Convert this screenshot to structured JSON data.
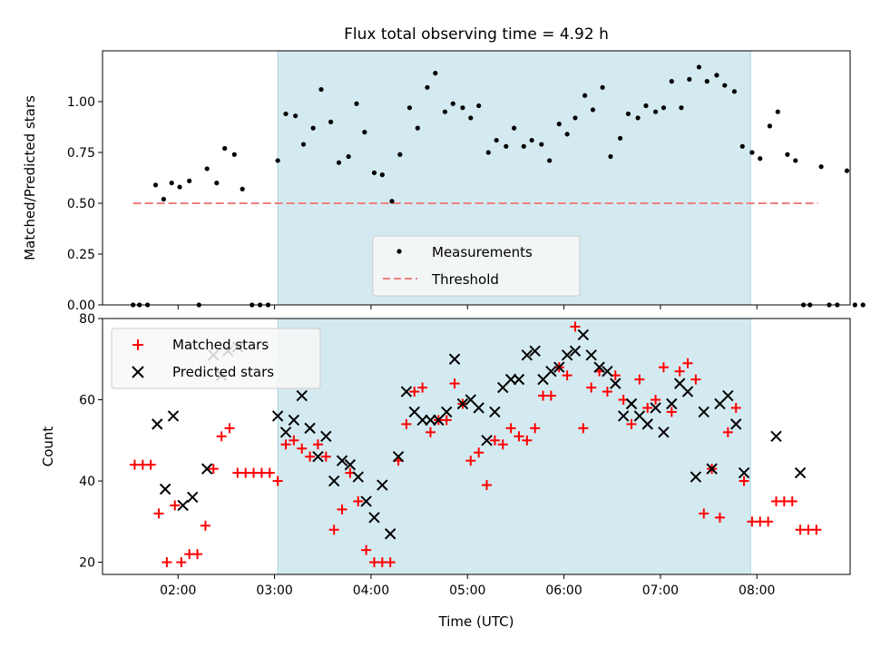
{
  "chart_data": [
    {
      "type": "scatter",
      "title": "Flux total observing time = 4.92 h",
      "xlabel": "",
      "ylabel": "Matched/Predicted stars",
      "xlim": [
        "01:13",
        "08:58"
      ],
      "ylim": [
        0,
        1.25
      ],
      "y_ticks": [
        "0.00",
        "0.25",
        "0.50",
        "0.75",
        "1.00"
      ],
      "shaded_interval": [
        "03:02",
        "07:56"
      ],
      "shade_color": "#d4eaf1",
      "threshold": {
        "value": 0.5,
        "x_start": "01:32",
        "x_end": "08:38",
        "color": "#ef8080"
      },
      "legend": {
        "placement": "lower center",
        "entries": [
          {
            "label": "Measurements",
            "marker": "dot"
          },
          {
            "label": "Threshold",
            "marker": "dashed-line"
          }
        ]
      },
      "series": [
        {
          "name": "Measurements",
          "color": "#000000",
          "points": [
            [
              "01:32",
              0
            ],
            [
              "01:36",
              0
            ],
            [
              "01:41",
              0
            ],
            [
              "01:46",
              0.59
            ],
            [
              "01:51",
              0.52
            ],
            [
              "01:56",
              0.6
            ],
            [
              "02:01",
              0.58
            ],
            [
              "02:07",
              0.61
            ],
            [
              "02:13",
              0
            ],
            [
              "02:18",
              0.67
            ],
            [
              "02:24",
              0.6
            ],
            [
              "02:29",
              0.77
            ],
            [
              "02:35",
              0.74
            ],
            [
              "02:40",
              0.57
            ],
            [
              "02:46",
              0
            ],
            [
              "02:51",
              0
            ],
            [
              "02:56",
              0
            ],
            [
              "03:02",
              0.71
            ],
            [
              "03:07",
              0.94
            ],
            [
              "03:13",
              0.93
            ],
            [
              "03:18",
              0.79
            ],
            [
              "03:24",
              0.87
            ],
            [
              "03:29",
              1.06
            ],
            [
              "03:35",
              0.9
            ],
            [
              "03:40",
              0.7
            ],
            [
              "03:46",
              0.73
            ],
            [
              "03:51",
              0.99
            ],
            [
              "03:56",
              0.85
            ],
            [
              "04:02",
              0.65
            ],
            [
              "04:07",
              0.64
            ],
            [
              "04:13",
              0.51
            ],
            [
              "04:18",
              0.74
            ],
            [
              "04:24",
              0.97
            ],
            [
              "04:29",
              0.87
            ],
            [
              "04:35",
              1.07
            ],
            [
              "04:40",
              1.14
            ],
            [
              "04:46",
              0.95
            ],
            [
              "04:51",
              0.99
            ],
            [
              "04:57",
              0.97
            ],
            [
              "05:02",
              0.92
            ],
            [
              "05:07",
              0.98
            ],
            [
              "05:13",
              0.75
            ],
            [
              "05:18",
              0.81
            ],
            [
              "05:24",
              0.78
            ],
            [
              "05:29",
              0.87
            ],
            [
              "05:35",
              0.78
            ],
            [
              "05:40",
              0.81
            ],
            [
              "05:46",
              0.79
            ],
            [
              "05:51",
              0.71
            ],
            [
              "05:57",
              0.89
            ],
            [
              "06:02",
              0.84
            ],
            [
              "06:07",
              0.92
            ],
            [
              "06:13",
              1.03
            ],
            [
              "06:18",
              0.96
            ],
            [
              "06:24",
              1.07
            ],
            [
              "06:29",
              0.73
            ],
            [
              "06:35",
              0.82
            ],
            [
              "06:40",
              0.94
            ],
            [
              "06:46",
              0.92
            ],
            [
              "06:51",
              0.98
            ],
            [
              "06:57",
              0.95
            ],
            [
              "07:02",
              0.97
            ],
            [
              "07:07",
              1.1
            ],
            [
              "07:13",
              0.97
            ],
            [
              "07:18",
              1.11
            ],
            [
              "07:24",
              1.17
            ],
            [
              "07:29",
              1.1
            ],
            [
              "07:35",
              1.13
            ],
            [
              "07:40",
              1.08
            ],
            [
              "07:46",
              1.05
            ],
            [
              "07:51",
              0.78
            ],
            [
              "07:57",
              0.75
            ],
            [
              "08:02",
              0.72
            ],
            [
              "08:08",
              0.88
            ],
            [
              "08:13",
              0.95
            ],
            [
              "08:19",
              0.74
            ],
            [
              "08:24",
              0.71
            ],
            [
              "08:29",
              0
            ],
            [
              "08:33",
              0
            ],
            [
              "08:40",
              0.68
            ],
            [
              "08:45",
              0
            ],
            [
              "08:50",
              0
            ],
            [
              "08:56",
              0.66
            ],
            [
              "09:01",
              0
            ],
            [
              "09:06",
              0
            ]
          ]
        }
      ]
    },
    {
      "type": "scatter",
      "title": "",
      "xlabel": "Time (UTC)",
      "ylabel": "Count",
      "xlim": [
        "01:13",
        "08:58"
      ],
      "ylim": [
        17,
        80
      ],
      "y_ticks": [
        "20",
        "40",
        "60",
        "80"
      ],
      "x_ticks": [
        "02:00",
        "03:00",
        "04:00",
        "05:00",
        "06:00",
        "07:00",
        "08:00"
      ],
      "shaded_interval": [
        "03:02",
        "07:56"
      ],
      "legend": {
        "placement": "top-left",
        "entries": [
          {
            "label": "Matched stars",
            "marker": "plus"
          },
          {
            "label": "Predicted stars",
            "marker": "x"
          }
        ]
      },
      "series": [
        {
          "name": "Matched stars",
          "color": "#ff0000",
          "points": [
            [
              "01:33",
              44
            ],
            [
              "01:38",
              44
            ],
            [
              "01:43",
              44
            ],
            [
              "01:48",
              32
            ],
            [
              "01:53",
              20
            ],
            [
              "01:58",
              34
            ],
            [
              "02:02",
              20
            ],
            [
              "02:07",
              22
            ],
            [
              "02:12",
              22
            ],
            [
              "02:17",
              29
            ],
            [
              "02:22",
              43
            ],
            [
              "02:27",
              51
            ],
            [
              "02:32",
              53
            ],
            [
              "02:37",
              42
            ],
            [
              "02:42",
              42
            ],
            [
              "02:47",
              42
            ],
            [
              "02:52",
              42
            ],
            [
              "02:57",
              42
            ],
            [
              "03:02",
              40
            ],
            [
              "03:07",
              49
            ],
            [
              "03:12",
              50
            ],
            [
              "03:17",
              48
            ],
            [
              "03:22",
              46
            ],
            [
              "03:27",
              49
            ],
            [
              "03:32",
              46
            ],
            [
              "03:37",
              28
            ],
            [
              "03:42",
              33
            ],
            [
              "03:47",
              42
            ],
            [
              "03:52",
              35
            ],
            [
              "03:57",
              23
            ],
            [
              "04:02",
              20
            ],
            [
              "04:07",
              20
            ],
            [
              "04:12",
              20
            ],
            [
              "04:17",
              45
            ],
            [
              "04:22",
              54
            ],
            [
              "04:27",
              62
            ],
            [
              "04:32",
              63
            ],
            [
              "04:37",
              52
            ],
            [
              "04:42",
              55
            ],
            [
              "04:47",
              55
            ],
            [
              "04:52",
              64
            ],
            [
              "04:57",
              59
            ],
            [
              "05:02",
              45
            ],
            [
              "05:07",
              47
            ],
            [
              "05:12",
              39
            ],
            [
              "05:17",
              50
            ],
            [
              "05:22",
              49
            ],
            [
              "05:27",
              53
            ],
            [
              "05:32",
              51
            ],
            [
              "05:37",
              50
            ],
            [
              "05:42",
              53
            ],
            [
              "05:47",
              61
            ],
            [
              "05:52",
              61
            ],
            [
              "05:57",
              68
            ],
            [
              "06:02",
              66
            ],
            [
              "06:07",
              78
            ],
            [
              "06:12",
              53
            ],
            [
              "06:17",
              63
            ],
            [
              "06:22",
              67
            ],
            [
              "06:27",
              62
            ],
            [
              "06:32",
              66
            ],
            [
              "06:37",
              60
            ],
            [
              "06:42",
              54
            ],
            [
              "06:47",
              65
            ],
            [
              "06:52",
              58
            ],
            [
              "06:57",
              60
            ],
            [
              "07:02",
              68
            ],
            [
              "07:07",
              57
            ],
            [
              "07:12",
              67
            ],
            [
              "07:17",
              69
            ],
            [
              "07:22",
              65
            ],
            [
              "07:27",
              32
            ],
            [
              "07:32",
              43
            ],
            [
              "07:37",
              31
            ],
            [
              "07:42",
              52
            ],
            [
              "07:47",
              58
            ],
            [
              "07:52",
              40
            ],
            [
              "07:57",
              30
            ],
            [
              "08:02",
              30
            ],
            [
              "08:07",
              30
            ],
            [
              "08:12",
              35
            ],
            [
              "08:17",
              35
            ],
            [
              "08:22",
              35
            ],
            [
              "08:27",
              28
            ],
            [
              "08:32",
              28
            ],
            [
              "08:37",
              28
            ]
          ]
        },
        {
          "name": "Predicted stars",
          "color": "#000000",
          "points": [
            [
              "01:47",
              54
            ],
            [
              "01:52",
              38
            ],
            [
              "01:57",
              56
            ],
            [
              "02:03",
              34
            ],
            [
              "02:09",
              36
            ],
            [
              "02:18",
              43
            ],
            [
              "02:22",
              71
            ],
            [
              "02:27",
              66
            ],
            [
              "02:31",
              72
            ],
            [
              "02:37",
              73
            ],
            [
              "03:02",
              56
            ],
            [
              "03:07",
              52
            ],
            [
              "03:12",
              55
            ],
            [
              "03:17",
              61
            ],
            [
              "03:22",
              53
            ],
            [
              "03:27",
              46
            ],
            [
              "03:32",
              51
            ],
            [
              "03:37",
              40
            ],
            [
              "03:42",
              45
            ],
            [
              "03:47",
              44
            ],
            [
              "03:52",
              41
            ],
            [
              "03:57",
              35
            ],
            [
              "04:02",
              31
            ],
            [
              "04:07",
              39
            ],
            [
              "04:12",
              27
            ],
            [
              "04:17",
              46
            ],
            [
              "04:22",
              62
            ],
            [
              "04:27",
              57
            ],
            [
              "04:32",
              55
            ],
            [
              "04:37",
              55
            ],
            [
              "04:42",
              55
            ],
            [
              "04:47",
              57
            ],
            [
              "04:52",
              70
            ],
            [
              "04:57",
              59
            ],
            [
              "05:02",
              60
            ],
            [
              "05:07",
              58
            ],
            [
              "05:12",
              50
            ],
            [
              "05:17",
              57
            ],
            [
              "05:22",
              63
            ],
            [
              "05:27",
              65
            ],
            [
              "05:32",
              65
            ],
            [
              "05:37",
              71
            ],
            [
              "05:42",
              72
            ],
            [
              "05:47",
              65
            ],
            [
              "05:52",
              67
            ],
            [
              "05:57",
              68
            ],
            [
              "06:02",
              71
            ],
            [
              "06:07",
              72
            ],
            [
              "06:12",
              76
            ],
            [
              "06:17",
              71
            ],
            [
              "06:22",
              68
            ],
            [
              "06:27",
              67
            ],
            [
              "06:32",
              64
            ],
            [
              "06:37",
              56
            ],
            [
              "06:42",
              59
            ],
            [
              "06:47",
              56
            ],
            [
              "06:52",
              54
            ],
            [
              "06:57",
              58
            ],
            [
              "07:02",
              52
            ],
            [
              "07:07",
              59
            ],
            [
              "07:12",
              64
            ],
            [
              "07:17",
              62
            ],
            [
              "07:22",
              41
            ],
            [
              "07:27",
              57
            ],
            [
              "07:32",
              43
            ],
            [
              "07:37",
              59
            ],
            [
              "07:42",
              61
            ],
            [
              "07:47",
              54
            ],
            [
              "07:52",
              42
            ],
            [
              "08:12",
              51
            ],
            [
              "08:27",
              42
            ]
          ]
        }
      ]
    }
  ]
}
